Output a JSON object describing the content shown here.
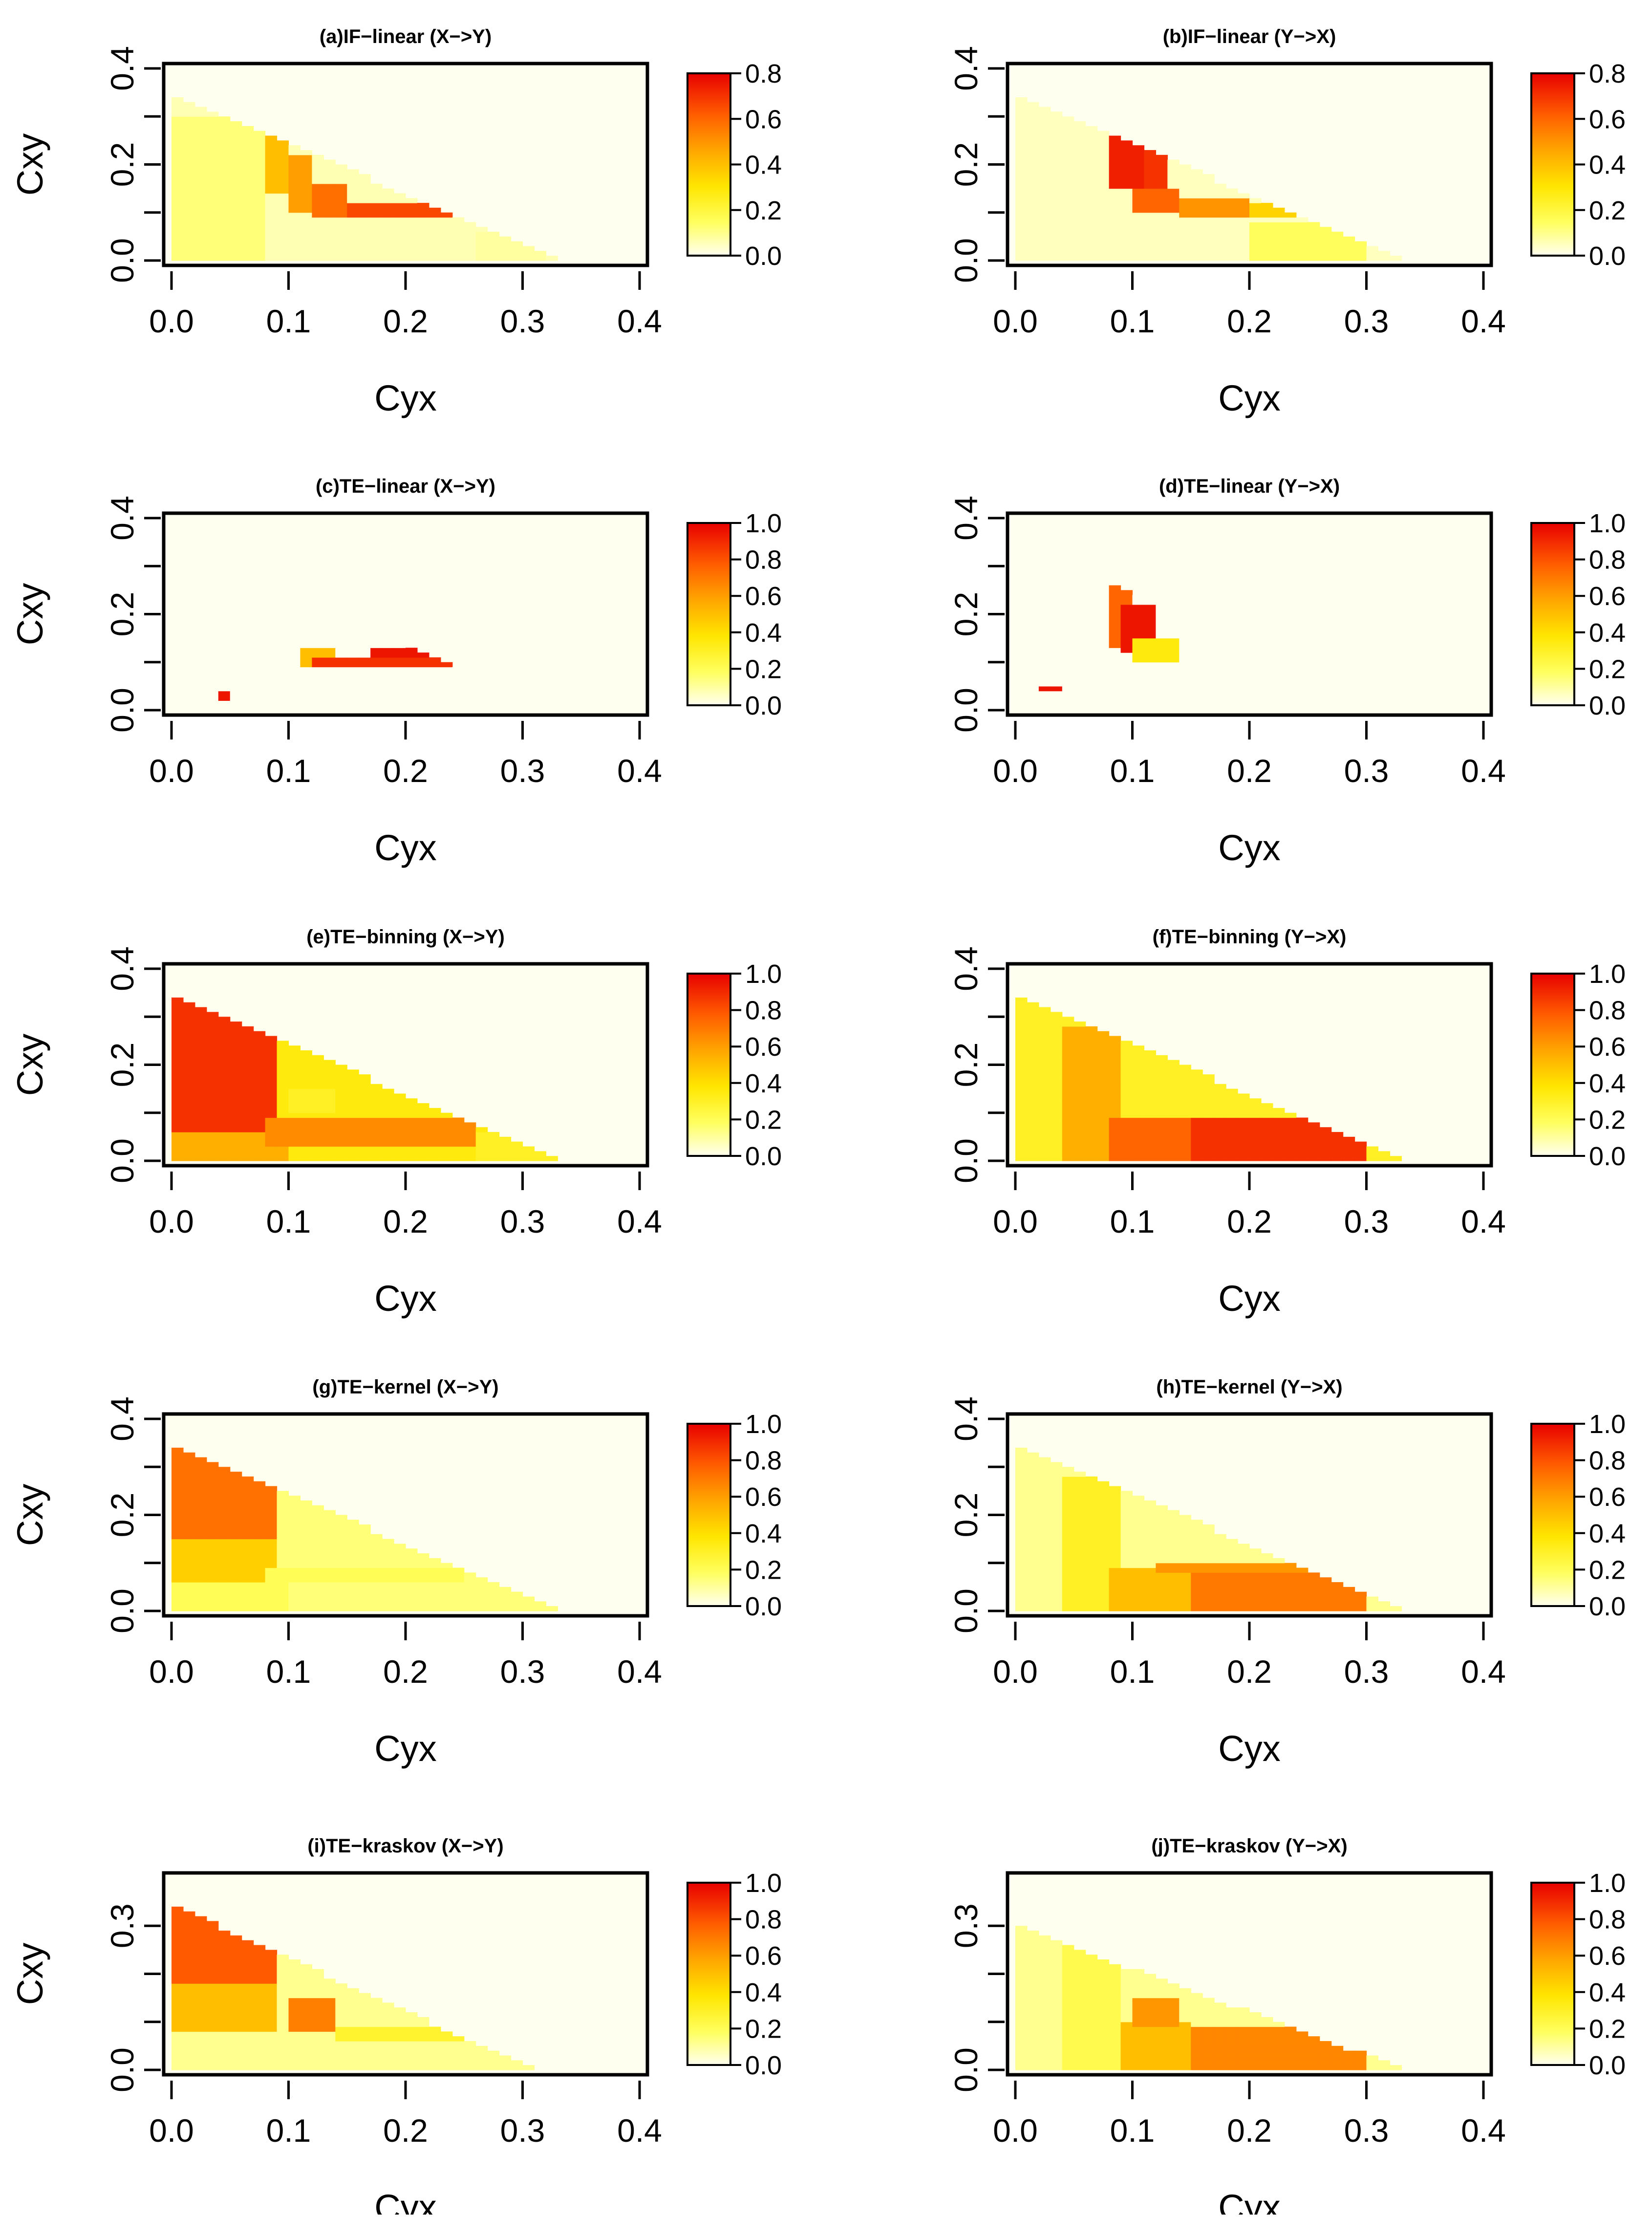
{
  "chart_data": [
    {
      "id": "a",
      "type": "heatmap",
      "title": "(a)IF−linear (X−>Y)",
      "xlabel": "Cyx",
      "ylabel": "Cxy",
      "xlim": [
        0,
        0.4
      ],
      "ylim": [
        0,
        0.4
      ],
      "xticks": [
        "0.0",
        "0.1",
        "0.2",
        "0.3",
        "0.4"
      ],
      "yticks": [
        "0.0",
        "0.2",
        "0.4"
      ],
      "yticks_minor": [
        0.1,
        0.3
      ],
      "colorbar": {
        "range": [
          0,
          0.8
        ],
        "ticks": [
          "0.0",
          "0.2",
          "0.4",
          "0.6",
          "0.8"
        ]
      },
      "feasible_region": {
        "y_intercept": 0.345,
        "x_intercept": 0.335,
        "background": 0.06
      },
      "regions": [
        {
          "x": [
            0,
            0.08
          ],
          "y": [
            0,
            0.3
          ],
          "value": 0.12
        },
        {
          "x": [
            0.085,
            0.1
          ],
          "y": [
            0.14,
            0.26
          ],
          "value": 0.4
        },
        {
          "x": [
            0.1,
            0.12
          ],
          "y": [
            0.1,
            0.22
          ],
          "value": 0.48
        },
        {
          "x": [
            0.12,
            0.15
          ],
          "y": [
            0.09,
            0.16
          ],
          "value": 0.58
        },
        {
          "x": [
            0.15,
            0.25
          ],
          "y": [
            0.09,
            0.12
          ],
          "value": 0.66
        },
        {
          "x": [
            0.24,
            0.255
          ],
          "y": [
            0.09,
            0.12
          ],
          "value": 0.78
        },
        {
          "x": [
            0.26,
            0.32
          ],
          "y": [
            0,
            0.06
          ],
          "value": 0.08
        }
      ]
    },
    {
      "id": "b",
      "type": "heatmap",
      "title": "(b)IF−linear (Y−>X)",
      "xlabel": "Cyx",
      "ylabel": "Cxy",
      "xlim": [
        0,
        0.4
      ],
      "ylim": [
        0,
        0.4
      ],
      "xticks": [
        "0.0",
        "0.1",
        "0.2",
        "0.3",
        "0.4"
      ],
      "yticks": [
        "0.0",
        "0.2",
        "0.4"
      ],
      "yticks_minor": [
        0.1,
        0.3
      ],
      "colorbar": {
        "range": [
          0,
          0.8
        ],
        "ticks": [
          "0.0",
          "0.2",
          "0.4",
          "0.6",
          "0.8"
        ]
      },
      "feasible_region": {
        "y_intercept": 0.345,
        "x_intercept": 0.335,
        "background": 0.05
      },
      "regions": [
        {
          "x": [
            0.085,
            0.11
          ],
          "y": [
            0.15,
            0.26
          ],
          "value": 0.74
        },
        {
          "x": [
            0.11,
            0.125
          ],
          "y": [
            0.14,
            0.23
          ],
          "value": 0.7
        },
        {
          "x": [
            0.1,
            0.14
          ],
          "y": [
            0.1,
            0.15
          ],
          "value": 0.6
        },
        {
          "x": [
            0.14,
            0.2
          ],
          "y": [
            0.09,
            0.13
          ],
          "value": 0.5
        },
        {
          "x": [
            0.2,
            0.25
          ],
          "y": [
            0.09,
            0.12
          ],
          "value": 0.35
        },
        {
          "x": [
            0.2,
            0.3
          ],
          "y": [
            0,
            0.08
          ],
          "value": 0.15
        }
      ]
    },
    {
      "id": "c",
      "type": "heatmap",
      "title": "(c)TE−linear (X−>Y)",
      "xlabel": "Cyx",
      "ylabel": "Cxy",
      "xlim": [
        0,
        0.4
      ],
      "ylim": [
        0,
        0.4
      ],
      "xticks": [
        "0.0",
        "0.1",
        "0.2",
        "0.3",
        "0.4"
      ],
      "yticks": [
        "0.0",
        "0.2",
        "0.4"
      ],
      "yticks_minor": [
        0.1,
        0.3
      ],
      "colorbar": {
        "range": [
          0,
          1.0
        ],
        "ticks": [
          "0.0",
          "0.2",
          "0.4",
          "0.6",
          "0.8",
          "1.0"
        ]
      },
      "feasible_region": {
        "y_intercept": 0.345,
        "x_intercept": 0.335,
        "background": 0.0
      },
      "regions": [
        {
          "x": [
            0.11,
            0.14
          ],
          "y": [
            0.09,
            0.13
          ],
          "value": 0.5
        },
        {
          "x": [
            0.12,
            0.25
          ],
          "y": [
            0.09,
            0.11
          ],
          "value": 0.88
        },
        {
          "x": [
            0.17,
            0.23
          ],
          "y": [
            0.11,
            0.13
          ],
          "value": 0.95
        },
        {
          "x": [
            0.035,
            0.045
          ],
          "y": [
            0.025,
            0.035
          ],
          "value": 0.95
        }
      ]
    },
    {
      "id": "d",
      "type": "heatmap",
      "title": "(d)TE−linear (Y−>X)",
      "xlabel": "Cyx",
      "ylabel": "Cxy",
      "xlim": [
        0,
        0.4
      ],
      "ylim": [
        0,
        0.4
      ],
      "xticks": [
        "0.0",
        "0.1",
        "0.2",
        "0.3",
        "0.4"
      ],
      "yticks": [
        "0.0",
        "0.2",
        "0.4"
      ],
      "yticks_minor": [
        0.1,
        0.3
      ],
      "colorbar": {
        "range": [
          0,
          1.0
        ],
        "ticks": [
          "0.0",
          "0.2",
          "0.4",
          "0.6",
          "0.8",
          "1.0"
        ]
      },
      "feasible_region": {
        "y_intercept": 0.345,
        "x_intercept": 0.335,
        "background": 0.0
      },
      "regions": [
        {
          "x": [
            0.08,
            0.1
          ],
          "y": [
            0.13,
            0.26
          ],
          "value": 0.75
        },
        {
          "x": [
            0.09,
            0.12
          ],
          "y": [
            0.12,
            0.22
          ],
          "value": 0.95
        },
        {
          "x": [
            0.1,
            0.14
          ],
          "y": [
            0.1,
            0.15
          ],
          "value": 0.35
        },
        {
          "x": [
            0.025,
            0.035
          ],
          "y": [
            0.035,
            0.045
          ],
          "value": 0.95
        }
      ]
    },
    {
      "id": "e",
      "type": "heatmap",
      "title": "(e)TE−binning (X−>Y)",
      "xlabel": "Cyx",
      "ylabel": "Cxy",
      "xlim": [
        0,
        0.4
      ],
      "ylim": [
        0,
        0.4
      ],
      "xticks": [
        "0.0",
        "0.1",
        "0.2",
        "0.3",
        "0.4"
      ],
      "yticks": [
        "0.0",
        "0.2",
        "0.4"
      ],
      "yticks_minor": [
        0.1,
        0.3
      ],
      "colorbar": {
        "range": [
          0,
          1.0
        ],
        "ticks": [
          "0.0",
          "0.2",
          "0.4",
          "0.6",
          "0.8",
          "1.0"
        ]
      },
      "feasible_region": {
        "y_intercept": 0.345,
        "x_intercept": 0.335,
        "background": 0.35
      },
      "regions": [
        {
          "x": [
            0,
            0.085
          ],
          "y": [
            0.05,
            0.34
          ],
          "value": 0.88
        },
        {
          "x": [
            0,
            0.1
          ],
          "y": [
            0,
            0.06
          ],
          "value": 0.55
        },
        {
          "x": [
            0.085,
            0.26
          ],
          "y": [
            0.03,
            0.09
          ],
          "value": 0.65
        },
        {
          "x": [
            0.1,
            0.14
          ],
          "y": [
            0.1,
            0.15
          ],
          "value": 0.3
        },
        {
          "x": [
            0.26,
            0.33
          ],
          "y": [
            0,
            0.06
          ],
          "value": 0.3
        }
      ]
    },
    {
      "id": "f",
      "type": "heatmap",
      "title": "(f)TE−binning (Y−>X)",
      "xlabel": "Cyx",
      "ylabel": "Cxy",
      "xlim": [
        0,
        0.4
      ],
      "ylim": [
        0,
        0.4
      ],
      "xticks": [
        "0.0",
        "0.1",
        "0.2",
        "0.3",
        "0.4"
      ],
      "yticks": [
        "0.0",
        "0.2",
        "0.4"
      ],
      "yticks_minor": [
        0.1,
        0.3
      ],
      "colorbar": {
        "range": [
          0,
          1.0
        ],
        "ticks": [
          "0.0",
          "0.2",
          "0.4",
          "0.6",
          "0.8",
          "1.0"
        ]
      },
      "feasible_region": {
        "y_intercept": 0.345,
        "x_intercept": 0.335,
        "background": 0.3
      },
      "regions": [
        {
          "x": [
            0.04,
            0.085
          ],
          "y": [
            0,
            0.28
          ],
          "value": 0.55
        },
        {
          "x": [
            0.085,
            0.15
          ],
          "y": [
            0,
            0.09
          ],
          "value": 0.75
        },
        {
          "x": [
            0.15,
            0.3
          ],
          "y": [
            0,
            0.09
          ],
          "value": 0.88
        },
        {
          "x": [
            0.1,
            0.14
          ],
          "y": [
            0.1,
            0.15
          ],
          "value": 0.3
        }
      ]
    },
    {
      "id": "g",
      "type": "heatmap",
      "title": "(g)TE−kernel (X−>Y)",
      "xlabel": "Cyx",
      "ylabel": "Cxy",
      "xlim": [
        0,
        0.4
      ],
      "ylim": [
        0,
        0.4
      ],
      "xticks": [
        "0.0",
        "0.1",
        "0.2",
        "0.3",
        "0.4"
      ],
      "yticks": [
        "0.0",
        "0.2",
        "0.4"
      ],
      "yticks_minor": [
        0.1,
        0.3
      ],
      "colorbar": {
        "range": [
          0,
          1.0
        ],
        "ticks": [
          "0.0",
          "0.2",
          "0.4",
          "0.6",
          "0.8",
          "1.0"
        ]
      },
      "feasible_region": {
        "y_intercept": 0.345,
        "x_intercept": 0.335,
        "background": 0.15
      },
      "regions": [
        {
          "x": [
            0,
            0.085
          ],
          "y": [
            0.15,
            0.34
          ],
          "value": 0.72
        },
        {
          "x": [
            0,
            0.085
          ],
          "y": [
            0.06,
            0.15
          ],
          "value": 0.45
        },
        {
          "x": [
            0,
            0.1
          ],
          "y": [
            0,
            0.06
          ],
          "value": 0.2
        },
        {
          "x": [
            0.085,
            0.25
          ],
          "y": [
            0.06,
            0.09
          ],
          "value": 0.2
        }
      ]
    },
    {
      "id": "h",
      "type": "heatmap",
      "title": "(h)TE−kernel (Y−>X)",
      "xlabel": "Cyx",
      "ylabel": "Cxy",
      "xlim": [
        0,
        0.4
      ],
      "ylim": [
        0,
        0.4
      ],
      "xticks": [
        "0.0",
        "0.1",
        "0.2",
        "0.3",
        "0.4"
      ],
      "yticks": [
        "0.0",
        "0.2",
        "0.4"
      ],
      "yticks_minor": [
        0.1,
        0.3
      ],
      "colorbar": {
        "range": [
          0,
          1.0
        ],
        "ticks": [
          "0.0",
          "0.2",
          "0.4",
          "0.6",
          "0.8",
          "1.0"
        ]
      },
      "feasible_region": {
        "y_intercept": 0.345,
        "x_intercept": 0.335,
        "background": 0.12
      },
      "regions": [
        {
          "x": [
            0.04,
            0.085
          ],
          "y": [
            0,
            0.28
          ],
          "value": 0.3
        },
        {
          "x": [
            0.085,
            0.15
          ],
          "y": [
            0,
            0.09
          ],
          "value": 0.5
        },
        {
          "x": [
            0.15,
            0.3
          ],
          "y": [
            0,
            0.09
          ],
          "value": 0.7
        },
        {
          "x": [
            0.12,
            0.26
          ],
          "y": [
            0.08,
            0.1
          ],
          "value": 0.62
        }
      ]
    },
    {
      "id": "i",
      "type": "heatmap",
      "title": "(i)TE−kraskov (X−>Y)",
      "xlabel": "Cyx",
      "ylabel": "Cxy",
      "xlim": [
        0,
        0.4
      ],
      "ylim": [
        0,
        0.4
      ],
      "xticks": [
        "0.0",
        "0.1",
        "0.2",
        "0.3",
        "0.4"
      ],
      "yticks": [
        "0.0",
        "0.3"
      ],
      "yticks_minor": [
        0.1,
        0.2
      ],
      "colorbar": {
        "range": [
          0,
          1.0
        ],
        "ticks": [
          "0.0",
          "0.2",
          "0.4",
          "0.6",
          "0.8",
          "1.0"
        ]
      },
      "feasible_region": {
        "y_intercept": 0.345,
        "x_intercept": 0.31,
        "background": 0.12
      },
      "regions": [
        {
          "x": [
            0,
            0.09
          ],
          "y": [
            0.18,
            0.34
          ],
          "value": 0.78
        },
        {
          "x": [
            0,
            0.09
          ],
          "y": [
            0.08,
            0.18
          ],
          "value": 0.5
        },
        {
          "x": [
            0.1,
            0.14
          ],
          "y": [
            0.08,
            0.15
          ],
          "value": 0.68
        },
        {
          "x": [
            0.14,
            0.25
          ],
          "y": [
            0.06,
            0.09
          ],
          "value": 0.28
        }
      ]
    },
    {
      "id": "j",
      "type": "heatmap",
      "title": "(j)TE−kraskov (Y−>X)",
      "xlabel": "Cyx",
      "ylabel": "Cxy",
      "xlim": [
        0,
        0.4
      ],
      "ylim": [
        0,
        0.4
      ],
      "xticks": [
        "0.0",
        "0.1",
        "0.2",
        "0.3",
        "0.4"
      ],
      "yticks": [
        "0.0",
        "0.3"
      ],
      "yticks_minor": [
        0.1,
        0.2
      ],
      "colorbar": {
        "range": [
          0,
          1.0
        ],
        "ticks": [
          "0.0",
          "0.2",
          "0.4",
          "0.6",
          "0.8",
          "1.0"
        ]
      },
      "feasible_region": {
        "y_intercept": 0.3,
        "x_intercept": 0.335,
        "background": 0.12
      },
      "regions": [
        {
          "x": [
            0.04,
            0.09
          ],
          "y": [
            0,
            0.26
          ],
          "value": 0.22
        },
        {
          "x": [
            0.09,
            0.15
          ],
          "y": [
            0,
            0.1
          ],
          "value": 0.5
        },
        {
          "x": [
            0.15,
            0.3
          ],
          "y": [
            0,
            0.09
          ],
          "value": 0.66
        },
        {
          "x": [
            0.1,
            0.14
          ],
          "y": [
            0.09,
            0.15
          ],
          "value": 0.62
        }
      ]
    }
  ]
}
